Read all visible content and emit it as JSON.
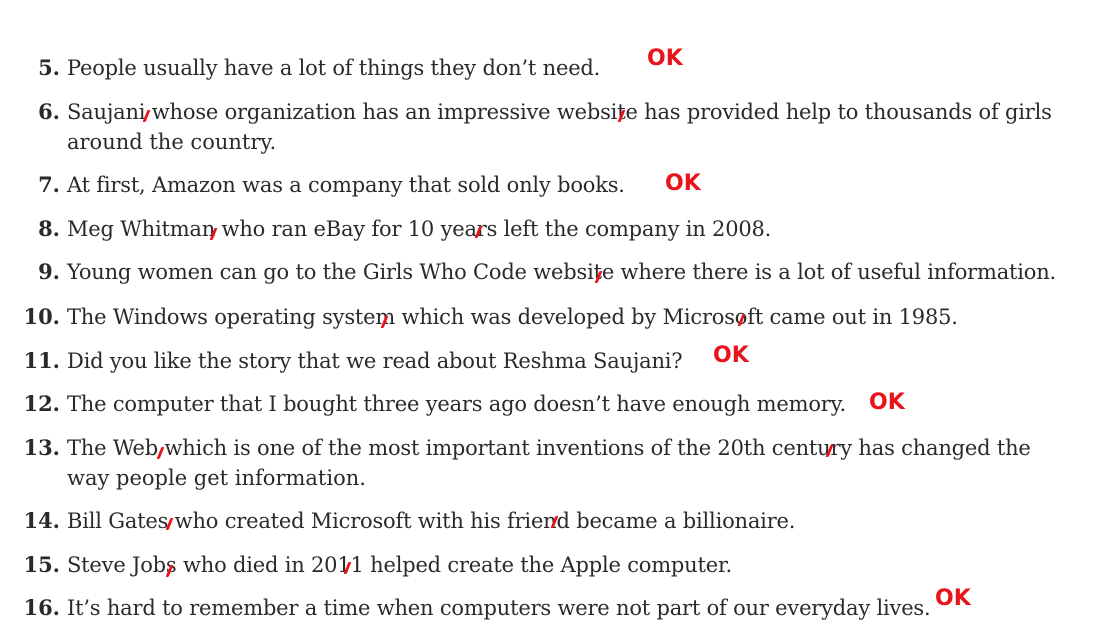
{
  "items": [
    {
      "num": "5.",
      "text": "People usually have a lot of things they don’t need.",
      "mark": "OK"
    },
    {
      "num": "6.",
      "line1": "Saujani whose organization has an impressive website has provided help to thousands of girls",
      "line2": "around the country."
    },
    {
      "num": "7.",
      "text": "At first, Amazon was a company that sold only books.",
      "mark": "OK"
    },
    {
      "num": "8.",
      "text": "Meg Whitman who ran eBay for 10 years left the company in 2008."
    },
    {
      "num": "9.",
      "text": "Young women can go to the Girls Who Code website where there is a lot of useful information."
    },
    {
      "num": "10.",
      "text": "The Windows operating system which was developed by Microsoft came out in 1985."
    },
    {
      "num": "11.",
      "text": "Did you like the story that we read about Reshma Saujani?",
      "mark": "OK"
    },
    {
      "num": "12.",
      "text": "The computer that I bought three years ago doesn’t have enough memory.",
      "mark": "OK"
    },
    {
      "num": "13.",
      "line1": "The Web which is one of the most important inventions of the 20th century has changed the",
      "line2": "way people get information."
    },
    {
      "num": "14.",
      "text": "Bill Gates who created Microsoft with his friend became a billionaire."
    },
    {
      "num": "15.",
      "text": "Steve Jobs who died in 2011 helped create the Apple computer."
    },
    {
      "num": "16.",
      "text": "It’s hard to remember a time when computers were not part of our everyday lives.",
      "mark": "OK"
    }
  ],
  "colors": {
    "text": "#2a2a2a",
    "annotation": "#e8141c"
  }
}
